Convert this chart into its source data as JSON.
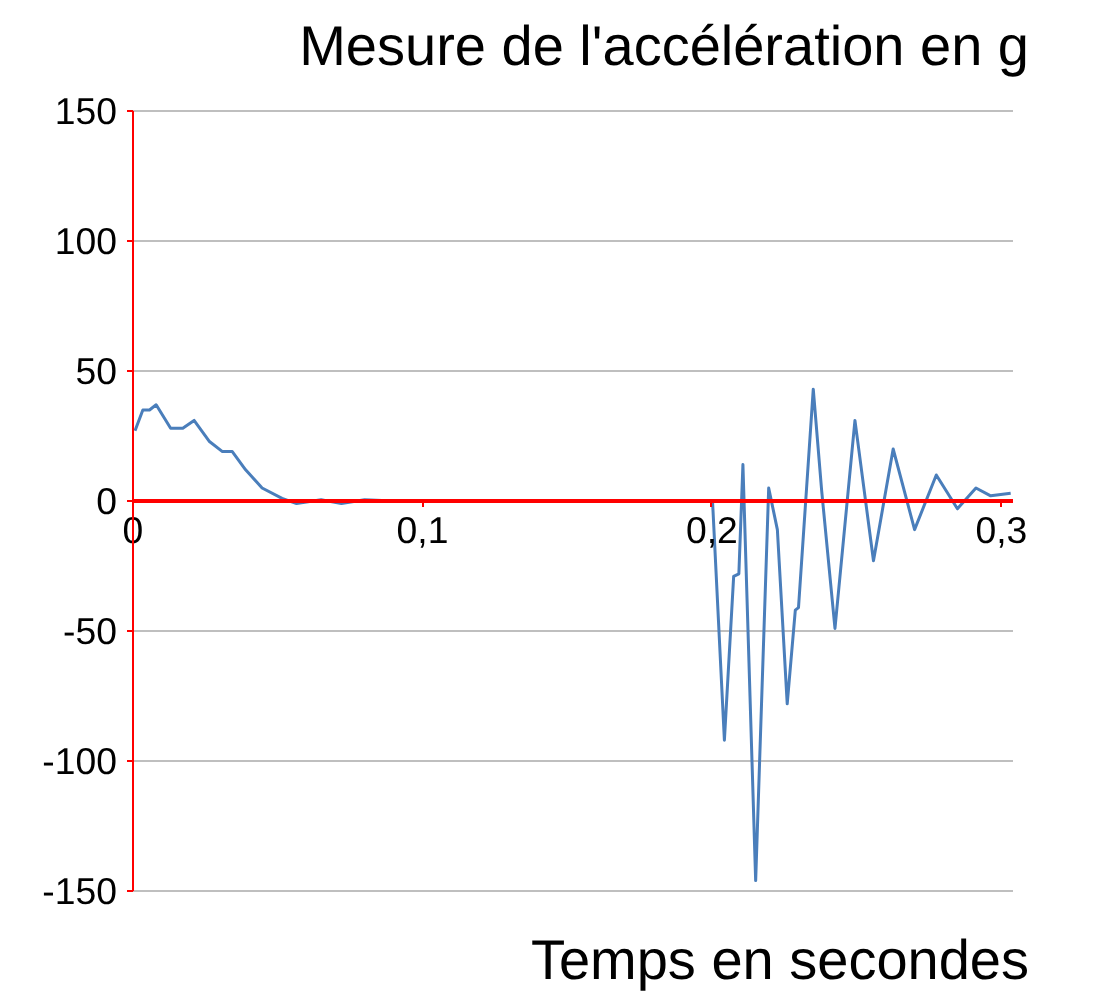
{
  "chart_data": {
    "type": "line",
    "title": "Mesure de l'accélération en g",
    "xlabel": "Temps en secondes",
    "x": [
      0.0007,
      0.0034,
      0.0057,
      0.008,
      0.013,
      0.0172,
      0.0211,
      0.0263,
      0.0309,
      0.0343,
      0.0389,
      0.0446,
      0.0515,
      0.0565,
      0.065,
      0.072,
      0.08,
      0.09,
      0.2002,
      0.2043,
      0.2075,
      0.2093,
      0.2107,
      0.2151,
      0.2196,
      0.2226,
      0.226,
      0.2288,
      0.2299,
      0.235,
      0.2379,
      0.2425,
      0.2494,
      0.2558,
      0.2626,
      0.27,
      0.2775,
      0.2848,
      0.2912,
      0.2963,
      0.3032
    ],
    "series": [
      {
        "color": "#4a7ebb",
        "values": [
          27,
          35,
          35,
          37,
          28,
          28,
          31,
          23,
          19,
          19,
          12,
          5,
          1,
          -1,
          0.5,
          -1,
          0.5,
          0,
          0,
          -92,
          -29,
          -28,
          14,
          -146,
          5,
          -11,
          -78,
          -42,
          -41,
          43,
          4,
          -49,
          31,
          -23,
          20,
          -11,
          10,
          -3,
          5,
          2,
          3
        ]
      }
    ],
    "xlim": [
      0,
      0.304
    ],
    "xticks": [
      0,
      {
        "value": 0.1,
        "label": "0,1"
      },
      {
        "value": 0.2,
        "label": "0,2"
      },
      {
        "value": 0.3,
        "label": "0,3"
      }
    ],
    "ylim": [
      -150,
      150
    ],
    "yticks": [
      -150,
      -100,
      -50,
      0,
      50,
      100,
      150
    ],
    "grid": "y",
    "marker": "none",
    "line_style": "solid"
  }
}
